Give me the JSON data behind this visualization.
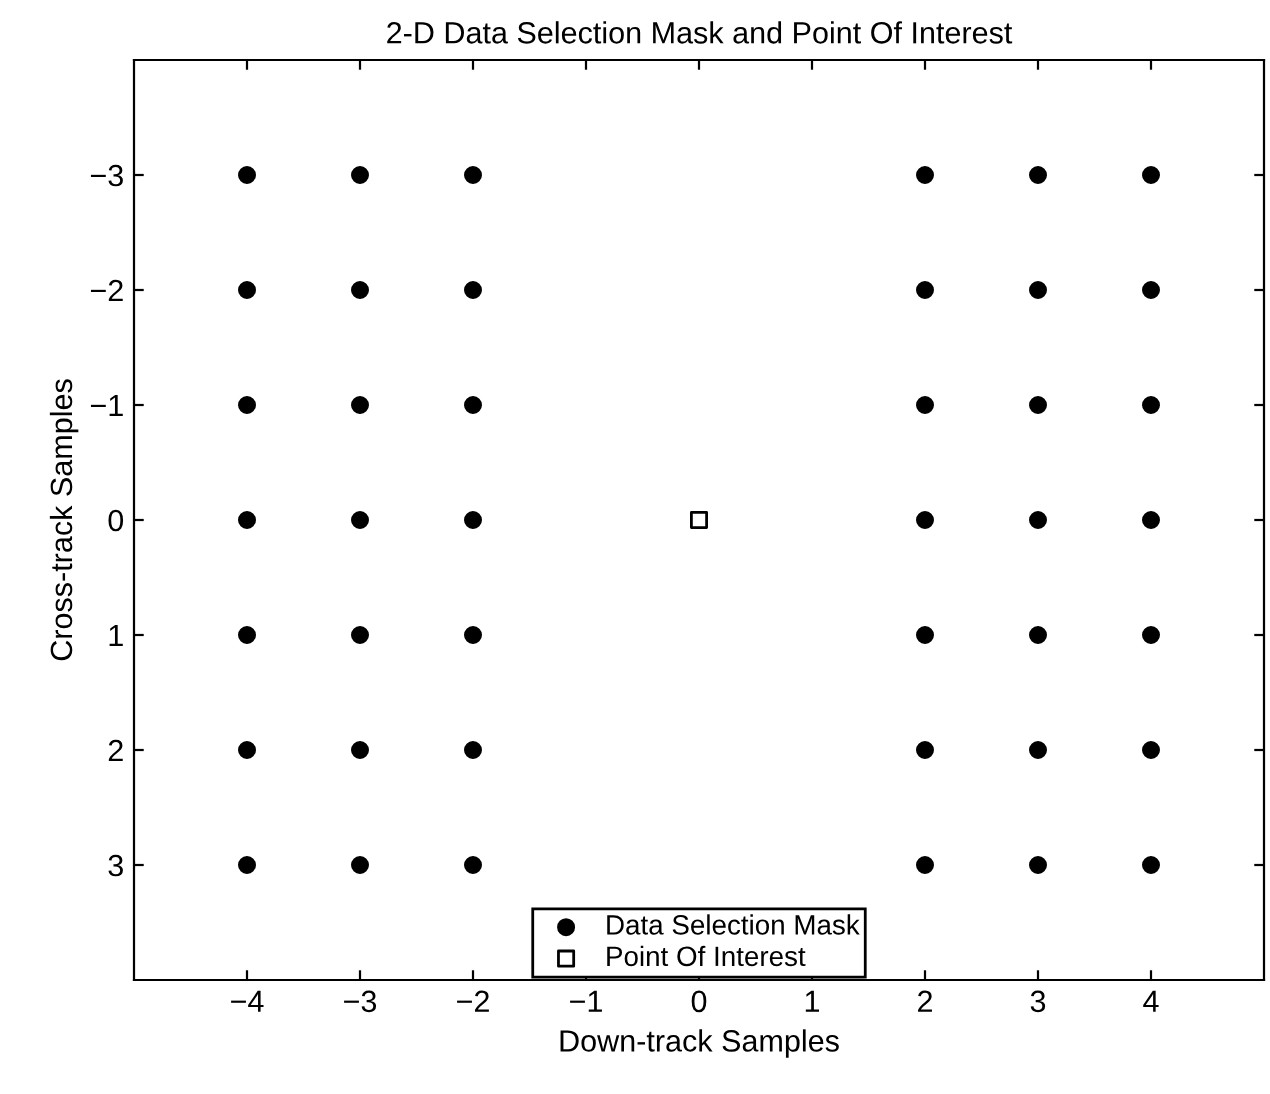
{
  "chart_data": {
    "type": "scatter",
    "title": "2-D Data Selection Mask and Point Of Interest",
    "xlabel": "Down-track Samples",
    "ylabel": "Cross-track Samples",
    "xlim": [
      -5,
      5
    ],
    "xticks": [
      -4,
      -3,
      -2,
      -1,
      0,
      1,
      2,
      3,
      4
    ],
    "ylim": [
      4,
      -4
    ],
    "yticks": [
      -3,
      -2,
      -1,
      0,
      1,
      2,
      3
    ],
    "grid": false,
    "legend": "bottom",
    "series": [
      {
        "name": "Data Selection Mask",
        "color": "#000000",
        "marker": "circle",
        "x": [
          -4,
          -4,
          -4,
          -4,
          -4,
          -4,
          -4,
          -3,
          -3,
          -3,
          -3,
          -3,
          -3,
          -3,
          -2,
          -2,
          -2,
          -2,
          -2,
          -2,
          -2,
          2,
          2,
          2,
          2,
          2,
          2,
          2,
          3,
          3,
          3,
          3,
          3,
          3,
          3,
          4,
          4,
          4,
          4,
          4,
          4,
          4
        ],
        "values": [
          -3,
          -2,
          -1,
          0,
          1,
          2,
          3,
          -3,
          -2,
          -1,
          0,
          1,
          2,
          3,
          -3,
          -2,
          -1,
          0,
          1,
          2,
          3,
          -3,
          -2,
          -1,
          0,
          1,
          2,
          3,
          -3,
          -2,
          -1,
          0,
          1,
          2,
          3,
          -3,
          -2,
          -1,
          0,
          1,
          2,
          3
        ]
      },
      {
        "name": "Point Of Interest",
        "color": "#000000",
        "marker": "square",
        "x": [
          0
        ],
        "values": [
          0
        ]
      }
    ]
  }
}
